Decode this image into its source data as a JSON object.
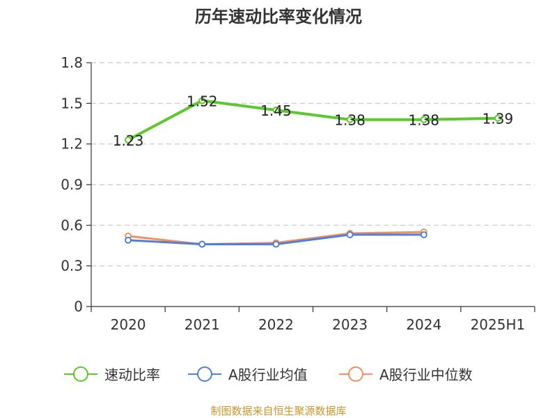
{
  "chart_data": {
    "type": "line",
    "title": "历年速动比率变化情况",
    "categories": [
      "2020",
      "2021",
      "2022",
      "2023",
      "2024",
      "2025H1"
    ],
    "y_ticks": [
      "0",
      "0.3",
      "0.6",
      "0.9",
      "1.2",
      "1.5",
      "1.8"
    ],
    "ylim": [
      0,
      1.8
    ],
    "grid": true,
    "legend_position": "bottom",
    "series": [
      {
        "name": "速动比率",
        "color": "#5cc82e",
        "values": [
          1.23,
          1.52,
          1.45,
          1.38,
          1.38,
          1.39
        ],
        "labels": [
          "1.23",
          "1.52",
          "1.45",
          "1.38",
          "1.38",
          "1.39"
        ]
      },
      {
        "name": "A股行业均值",
        "color": "#4f7fd9",
        "values": [
          0.49,
          0.46,
          0.46,
          0.53,
          0.53,
          null
        ]
      },
      {
        "name": "A股行业中位数",
        "color": "#f0915d",
        "values": [
          0.52,
          0.46,
          0.47,
          0.54,
          0.55,
          null
        ]
      }
    ],
    "source": "制图数据来自恒生聚源数据库"
  }
}
